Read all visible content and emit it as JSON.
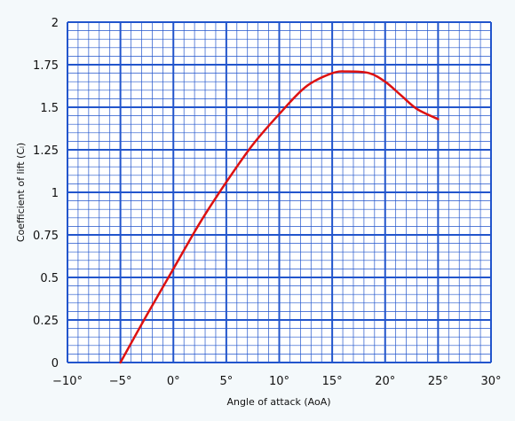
{
  "chart_data": {
    "type": "line",
    "title": "",
    "xlabel": "Angle of attack (AoA)",
    "ylabel": "Coefficient of lift (Cₗ)",
    "xlim": [
      -10,
      30
    ],
    "ylim": [
      0,
      2
    ],
    "x_ticks": [
      -10,
      -5,
      0,
      5,
      10,
      15,
      20,
      25,
      30
    ],
    "x_tick_labels": [
      "−10°",
      "−5°",
      "0°",
      "5°",
      "10°",
      "15°",
      "20°",
      "25°",
      "30°"
    ],
    "y_ticks": [
      0,
      0.25,
      0.5,
      0.75,
      1,
      1.25,
      1.5,
      1.75,
      2
    ],
    "y_tick_labels": [
      "0",
      "0.25",
      "0.5",
      "0.75",
      "1",
      "1.25",
      "1.5",
      "1.75",
      "2"
    ],
    "grid": true,
    "grid_color": "#2255cc",
    "background": "#ffffff",
    "series": [
      {
        "color": "#dd1111",
        "x": [
          -5,
          -2.5,
          0,
          2.5,
          5,
          7.5,
          10,
          12.5,
          15,
          16.5,
          18.5,
          20,
          21.5,
          23,
          25
        ],
        "y": [
          0,
          0.28,
          0.55,
          0.82,
          1.06,
          1.28,
          1.46,
          1.62,
          1.7,
          1.71,
          1.7,
          1.65,
          1.57,
          1.49,
          1.43
        ]
      }
    ]
  }
}
